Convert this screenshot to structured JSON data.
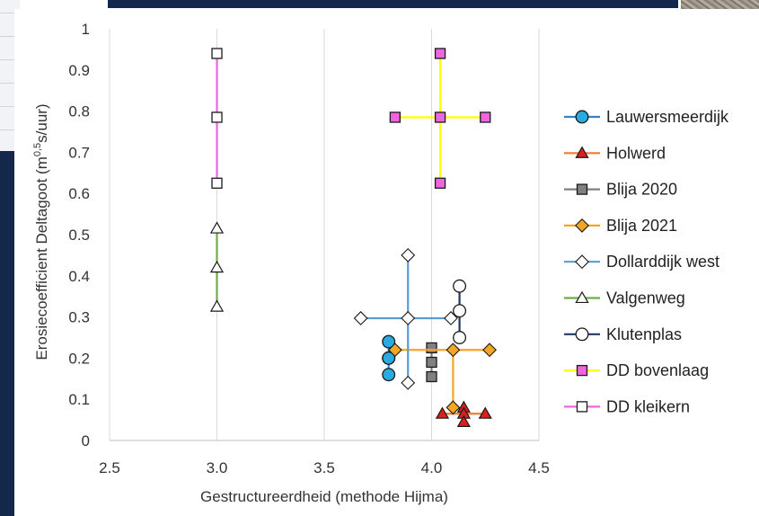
{
  "chart_data": {
    "type": "scatter",
    "xlabel": "Gestructureerdheid (methode Hijma)",
    "ylabel_main": "Erosiecoefficient Deltagoot (m",
    "ylabel_sup": "0,5",
    "ylabel_tail": "s/uur)",
    "xlim": [
      2.5,
      4.5
    ],
    "ylim": [
      0,
      1
    ],
    "x_ticks": [
      "2.5",
      "3.0",
      "3.5",
      "4.0",
      "4.5"
    ],
    "y_ticks": [
      "0",
      "0.1",
      "0.2",
      "0.3",
      "0.4",
      "0.5",
      "0.6",
      "0.7",
      "0.8",
      "0.9",
      "1"
    ],
    "grid": "vertical",
    "legend_position": "right",
    "series": [
      {
        "name": "Lauwersmeerdijk",
        "marker": "circle",
        "line_color": "#3d7fc4",
        "fill": "#29abe2",
        "points": [
          [
            3.8,
            0.24
          ],
          [
            3.8,
            0.2
          ],
          [
            3.8,
            0.16
          ],
          [
            3.8,
            0.2
          ]
        ],
        "segments": [
          [
            [
              3.8,
              0.24
            ],
            [
              3.8,
              0.16
            ]
          ]
        ]
      },
      {
        "name": "Holwerd",
        "marker": "triangle",
        "line_color": "#ed7d31",
        "fill": "#d9201f",
        "points": [
          [
            4.05,
            0.065
          ],
          [
            4.15,
            0.08
          ],
          [
            4.15,
            0.065
          ],
          [
            4.15,
            0.045
          ],
          [
            4.25,
            0.065
          ]
        ],
        "segments": [
          [
            [
              4.05,
              0.065
            ],
            [
              4.25,
              0.065
            ]
          ],
          [
            [
              4.15,
              0.08
            ],
            [
              4.15,
              0.045
            ]
          ]
        ]
      },
      {
        "name": "Blija 2020",
        "marker": "square",
        "line_color": "#808080",
        "fill": "#808080",
        "points": [
          [
            4.0,
            0.225
          ],
          [
            4.0,
            0.19
          ],
          [
            4.0,
            0.155
          ]
        ],
        "segments": [
          [
            [
              4.0,
              0.225
            ],
            [
              4.0,
              0.155
            ]
          ]
        ]
      },
      {
        "name": "Blija 2021",
        "marker": "diamond",
        "line_color": "#f5a623",
        "fill": "#f5a623",
        "points": [
          [
            3.83,
            0.22
          ],
          [
            4.1,
            0.22
          ],
          [
            4.27,
            0.22
          ],
          [
            4.1,
            0.08
          ]
        ],
        "segments": [
          [
            [
              3.83,
              0.22
            ],
            [
              4.27,
              0.22
            ]
          ],
          [
            [
              4.1,
              0.22
            ],
            [
              4.1,
              0.08
            ]
          ]
        ]
      },
      {
        "name": "Dollarddijk west",
        "marker": "diamond",
        "line_color": "#5b9bd5",
        "fill": "#ffffff",
        "points": [
          [
            3.67,
            0.297
          ],
          [
            3.89,
            0.297
          ],
          [
            4.09,
            0.297
          ],
          [
            3.89,
            0.45
          ],
          [
            3.89,
            0.14
          ]
        ],
        "segments": [
          [
            [
              3.67,
              0.297
            ],
            [
              4.09,
              0.297
            ]
          ],
          [
            [
              3.89,
              0.45
            ],
            [
              3.89,
              0.14
            ]
          ]
        ]
      },
      {
        "name": "Valgenweg",
        "marker": "triangle",
        "line_color": "#70ad47",
        "fill": "#ffffff",
        "points": [
          [
            3.0,
            0.515
          ],
          [
            3.0,
            0.42
          ],
          [
            3.0,
            0.325
          ]
        ],
        "segments": [
          [
            [
              3.0,
              0.515
            ],
            [
              3.0,
              0.325
            ]
          ]
        ]
      },
      {
        "name": "Klutenplas",
        "marker": "circle",
        "line_color": "#1f3864",
        "fill": "#ffffff",
        "points": [
          [
            4.13,
            0.375
          ],
          [
            4.13,
            0.315
          ],
          [
            4.13,
            0.25
          ]
        ],
        "segments": [
          [
            [
              4.13,
              0.375
            ],
            [
              4.13,
              0.25
            ]
          ]
        ]
      },
      {
        "name": "DD bovenlaag",
        "marker": "square",
        "line_color": "#ffff00",
        "fill": "#ee66dd",
        "points": [
          [
            3.83,
            0.785
          ],
          [
            4.04,
            0.785
          ],
          [
            4.25,
            0.785
          ],
          [
            4.04,
            0.94
          ],
          [
            4.04,
            0.625
          ]
        ],
        "segments": [
          [
            [
              3.83,
              0.785
            ],
            [
              4.25,
              0.785
            ]
          ],
          [
            [
              4.04,
              0.94
            ],
            [
              4.04,
              0.625
            ]
          ]
        ]
      },
      {
        "name": "DD kleikern",
        "marker": "square",
        "line_color": "#ee66dd",
        "fill": "#ffffff",
        "points": [
          [
            3.0,
            0.94
          ],
          [
            3.0,
            0.785
          ],
          [
            3.0,
            0.625
          ]
        ],
        "segments": [
          [
            [
              3.0,
              0.94
            ],
            [
              3.0,
              0.625
            ]
          ]
        ]
      }
    ]
  }
}
